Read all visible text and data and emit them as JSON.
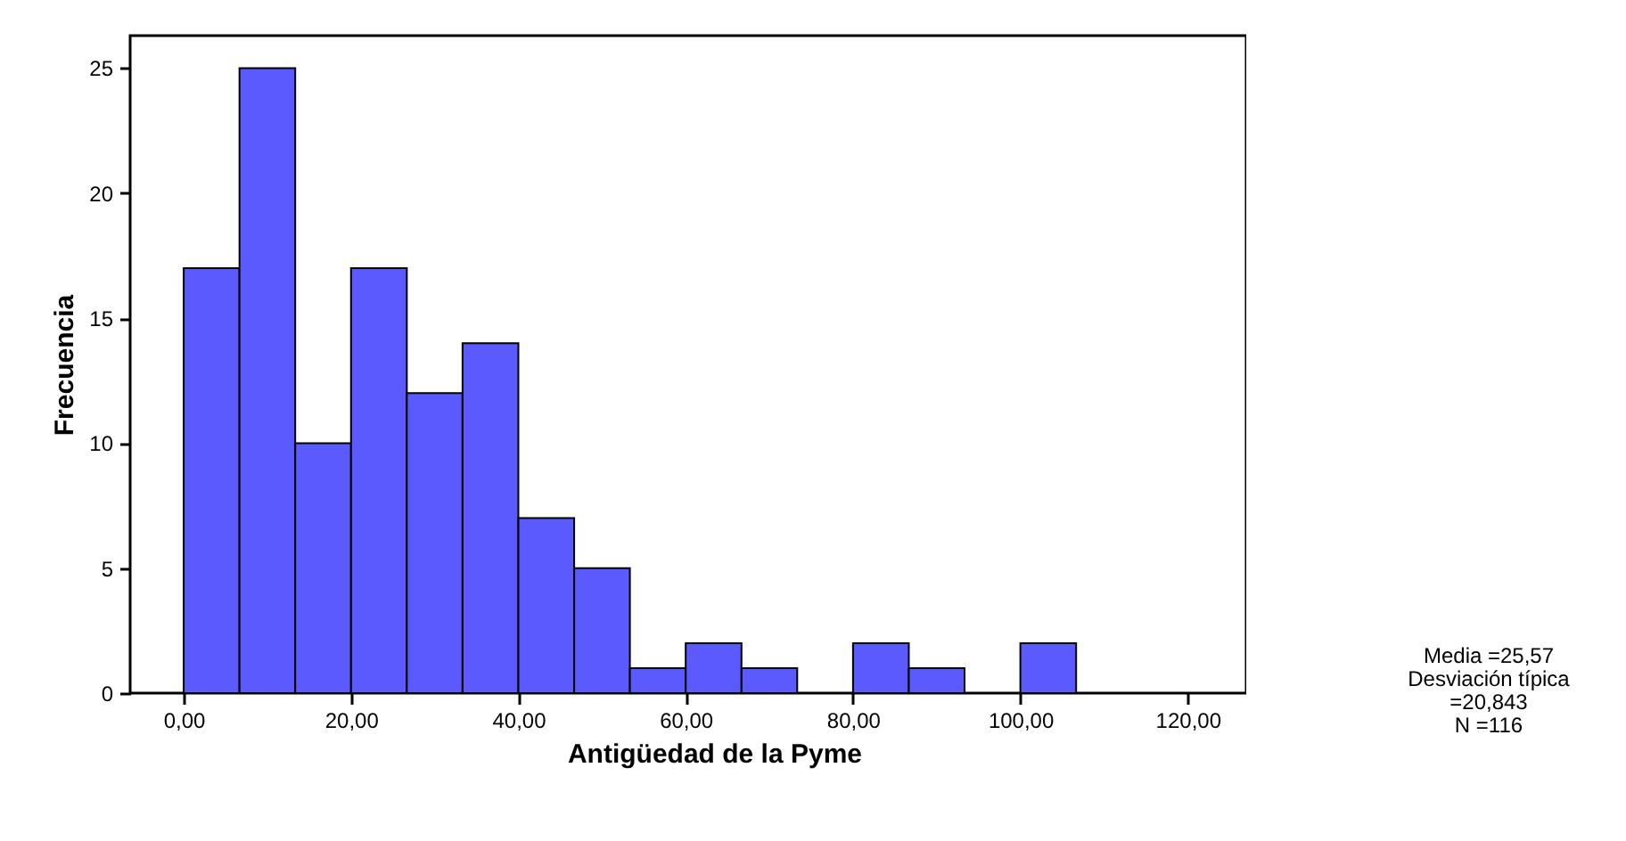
{
  "chart_data": {
    "type": "histogram",
    "xlabel": "Antigüedad de la Pyme",
    "ylabel": "Frecuencia",
    "bins": [
      0,
      6.67,
      13.33,
      20,
      26.67,
      33.33,
      40,
      46.67,
      53.33,
      60,
      66.67,
      73.33,
      80,
      86.67,
      93.33,
      100,
      106.67
    ],
    "values": [
      17,
      25,
      10,
      17,
      12,
      14,
      7,
      5,
      1,
      2,
      1,
      0,
      2,
      1,
      0,
      2
    ],
    "color": "#5a5aff",
    "xlim": [
      -6.4,
      127
    ],
    "ylim": [
      0,
      26.3
    ],
    "xticks": [
      {
        "value": 0,
        "label": "0,00"
      },
      {
        "value": 20,
        "label": "20,00"
      },
      {
        "value": 40,
        "label": "40,00"
      },
      {
        "value": 60,
        "label": "60,00"
      },
      {
        "value": 80,
        "label": "80,00"
      },
      {
        "value": 100,
        "label": "100,00"
      },
      {
        "value": 120,
        "label": "120,00"
      }
    ],
    "yticks": [
      0,
      5,
      10,
      15,
      20,
      25
    ],
    "annotations": [
      "Media =25,57",
      "Desviación típica",
      "=20,843",
      "N =116"
    ]
  }
}
